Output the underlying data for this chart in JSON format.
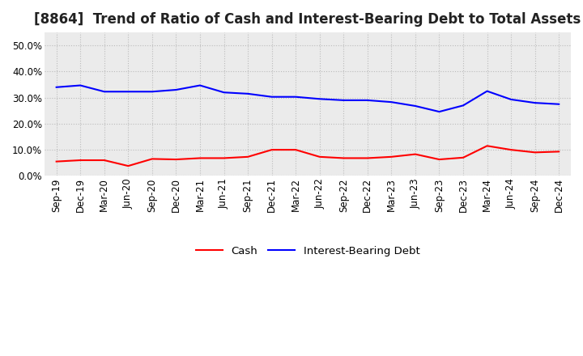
{
  "title": "[8864]  Trend of Ratio of Cash and Interest-Bearing Debt to Total Assets",
  "x_labels": [
    "Sep-19",
    "Dec-19",
    "Mar-20",
    "Jun-20",
    "Sep-20",
    "Dec-20",
    "Mar-21",
    "Jun-21",
    "Sep-21",
    "Dec-21",
    "Mar-22",
    "Jun-22",
    "Sep-22",
    "Dec-22",
    "Mar-23",
    "Jun-23",
    "Sep-23",
    "Dec-23",
    "Mar-24",
    "Jun-24",
    "Sep-24",
    "Dec-24"
  ],
  "cash": [
    0.055,
    0.06,
    0.06,
    0.038,
    0.065,
    0.063,
    0.068,
    0.068,
    0.073,
    0.1,
    0.1,
    0.073,
    0.068,
    0.068,
    0.073,
    0.083,
    0.063,
    0.07,
    0.115,
    0.1,
    0.09,
    0.093
  ],
  "interest_bearing_debt": [
    0.34,
    0.347,
    0.323,
    0.323,
    0.323,
    0.33,
    0.347,
    0.32,
    0.315,
    0.303,
    0.303,
    0.295,
    0.29,
    0.29,
    0.283,
    0.268,
    0.246,
    0.27,
    0.325,
    0.293,
    0.28,
    0.275
  ],
  "cash_color": "#FF0000",
  "debt_color": "#0000FF",
  "background_color": "#FFFFFF",
  "plot_bg_color": "#EBEBEB",
  "grid_color": "#BBBBBB",
  "ylim": [
    0.0,
    0.55
  ],
  "yticks": [
    0.0,
    0.1,
    0.2,
    0.3,
    0.4,
    0.5
  ],
  "legend_cash": "Cash",
  "legend_debt": "Interest-Bearing Debt",
  "title_fontsize": 12,
  "tick_fontsize": 8.5
}
